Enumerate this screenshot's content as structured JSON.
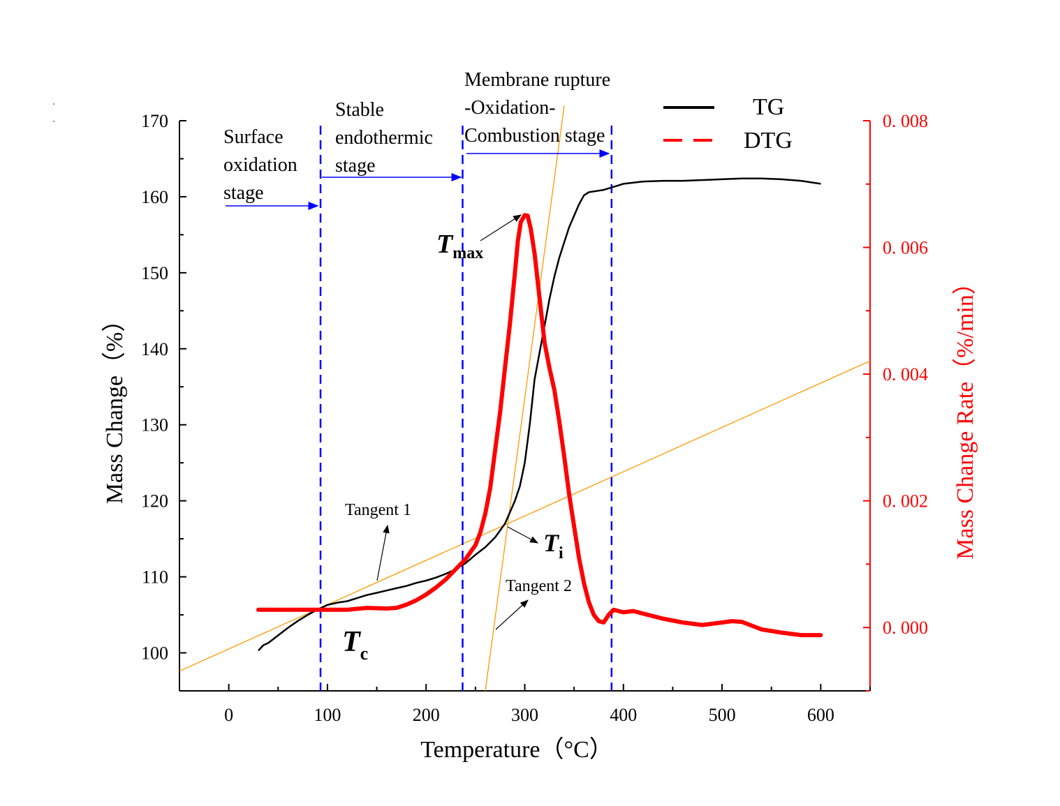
{
  "chart_data": {
    "type": "line",
    "x": {
      "label": "Temperature（°C）",
      "range": [
        -50,
        650
      ],
      "ticks": [
        0,
        100,
        200,
        300,
        400,
        500,
        600
      ]
    },
    "y_left": {
      "label": "Mass Change（%）",
      "range": [
        95,
        170
      ],
      "ticks": [
        100,
        110,
        120,
        130,
        140,
        150,
        160,
        170
      ]
    },
    "y_right": {
      "label": "Mass Change Rate（%/min）",
      "range": [
        -0.001,
        0.008
      ],
      "ticks": [
        0.0,
        0.002,
        0.004,
        0.006,
        0.008
      ],
      "tick_labels": [
        "0. 000",
        "0. 002",
        "0. 004",
        "0. 006",
        "0. 008"
      ],
      "color": "#ff0000"
    },
    "series": [
      {
        "name": "TG",
        "axis": "left",
        "color": "#000000",
        "style": "solid",
        "x": [
          30,
          35,
          40,
          50,
          60,
          70,
          80,
          90,
          95,
          100,
          110,
          120,
          130,
          140,
          150,
          160,
          170,
          180,
          190,
          200,
          210,
          220,
          230,
          240,
          250,
          260,
          270,
          280,
          285,
          290,
          295,
          300,
          305,
          310,
          315,
          320,
          325,
          330,
          335,
          340,
          345,
          350,
          355,
          360,
          365,
          370,
          380,
          390,
          400,
          420,
          440,
          460,
          480,
          500,
          520,
          540,
          560,
          580,
          600
        ],
        "values": [
          100.3,
          101.0,
          101.3,
          102.3,
          103.3,
          104.2,
          105.0,
          105.7,
          106.0,
          106.3,
          106.6,
          106.8,
          107.2,
          107.6,
          107.9,
          108.2,
          108.5,
          108.8,
          109.2,
          109.5,
          109.9,
          110.4,
          111.0,
          111.8,
          112.9,
          113.9,
          115.2,
          117.0,
          118.5,
          120.0,
          121.9,
          125.0,
          130.0,
          136.0,
          139.5,
          143.0,
          146.5,
          149.5,
          152.0,
          154.0,
          156.0,
          157.5,
          159.0,
          160.2,
          160.6,
          160.7,
          160.9,
          161.3,
          161.7,
          162.0,
          162.1,
          162.1,
          162.2,
          162.3,
          162.4,
          162.4,
          162.3,
          162.1,
          161.7
        ]
      },
      {
        "name": "DTG",
        "axis": "right",
        "color": "#ff0000",
        "style": "dashed",
        "x": [
          30,
          60,
          90,
          120,
          140,
          160,
          170,
          180,
          190,
          200,
          210,
          220,
          230,
          240,
          250,
          255,
          260,
          265,
          270,
          275,
          280,
          285,
          290,
          293,
          296,
          300,
          303,
          306,
          310,
          315,
          320,
          325,
          330,
          335,
          340,
          345,
          350,
          355,
          360,
          365,
          370,
          375,
          380,
          385,
          390,
          400,
          410,
          420,
          440,
          460,
          480,
          500,
          510,
          520,
          530,
          540,
          560,
          580,
          600
        ],
        "values": [
          0.00028,
          0.00028,
          0.00028,
          0.00028,
          0.00031,
          0.0003,
          0.00031,
          0.00036,
          0.00043,
          0.00052,
          0.00063,
          0.00076,
          0.00092,
          0.00108,
          0.0013,
          0.0015,
          0.0018,
          0.0022,
          0.0028,
          0.0034,
          0.0041,
          0.0048,
          0.0056,
          0.0061,
          0.0064,
          0.00651,
          0.0065,
          0.0063,
          0.0059,
          0.0052,
          0.0045,
          0.0041,
          0.00375,
          0.00325,
          0.0027,
          0.0021,
          0.0016,
          0.0011,
          0.0007,
          0.0004,
          0.0002,
          0.0001,
          8e-05,
          0.0002,
          0.00028,
          0.00024,
          0.00026,
          0.00022,
          0.00014,
          8e-05,
          4e-05,
          8e-05,
          0.0001,
          9e-05,
          3e-05,
          -3e-05,
          -8e-05,
          -0.00012,
          -0.00012
        ]
      }
    ],
    "stage_boundaries_x": [
      93,
      237,
      388
    ],
    "tangent_lines": [
      {
        "name": "Tangent 1",
        "x1": -50,
        "y1": 97.6,
        "x2": 650,
        "y2": 138.4
      },
      {
        "name": "Tangent 2",
        "x1": 260,
        "y1": 95.0,
        "x2": 340,
        "y2": 172.0
      }
    ],
    "annotations": {
      "stage1": [
        "Surface",
        "oxidation",
        "stage"
      ],
      "stage2": [
        "Stable",
        "endothermic",
        "stage"
      ],
      "stage3": [
        "Membrane rupture",
        "-Oxidation-",
        "Combustion stage"
      ],
      "tangent1": "Tangent 1",
      "tangent2": "Tangent 2",
      "tmax": {
        "main": "T",
        "sub": "max"
      },
      "ti": {
        "main": "T",
        "sub": "i"
      },
      "tc": {
        "main": "T",
        "sub": "c"
      }
    },
    "legend": {
      "position": "top-right",
      "entries": [
        {
          "label": "TG",
          "color": "#000000",
          "style": "solid"
        },
        {
          "label": "DTG",
          "color": "#ff0000",
          "style": "dashed"
        }
      ]
    },
    "colors": {
      "stage_line": "#0000ff",
      "tangent": "#ff9900",
      "arrow": "#0000ff"
    }
  }
}
